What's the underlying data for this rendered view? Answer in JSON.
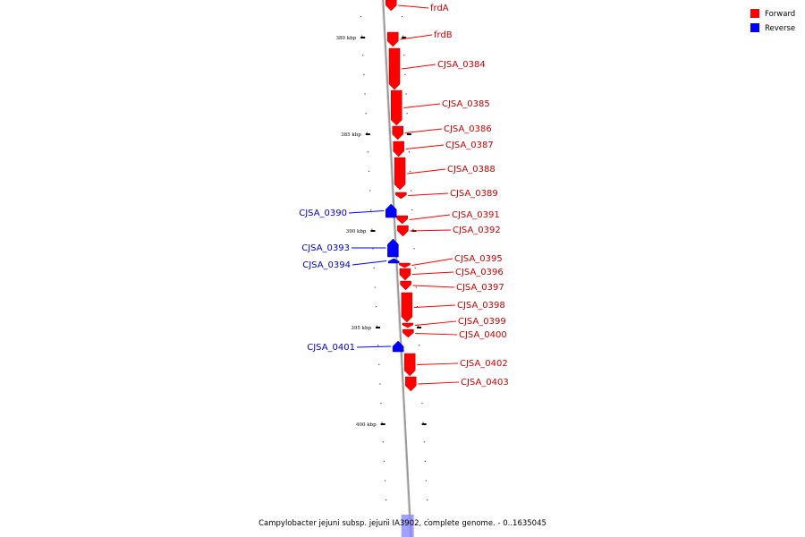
{
  "caption": "Campylobacter jejuni subsp. jejuni IA3902, complete genome. - 0..1635045",
  "legend": [
    {
      "label": "Forward",
      "color": "#ff0000"
    },
    {
      "label": "Reverse",
      "color": "#0000ff"
    }
  ],
  "colors": {
    "forward": "#ff0000",
    "reverse": "#0000ff",
    "backbone": "#999999",
    "forward_label": "#cc0000",
    "reverse_label": "#0000cc"
  },
  "tick_labels": [
    "380 kbp",
    "385 kbp",
    "390 kbp",
    "395 kbp",
    "400 kbp"
  ],
  "forward_genes": [
    "frdA",
    "frdB",
    "CJSA_0384",
    "CJSA_0385",
    "CJSA_0386",
    "CJSA_0387",
    "CJSA_0388",
    "CJSA_0389",
    "CJSA_0391",
    "CJSA_0392",
    "CJSA_0395",
    "CJSA_0396",
    "CJSA_0397",
    "CJSA_0398",
    "CJSA_0399",
    "CJSA_0400",
    "CJSA_0402",
    "CJSA_0403"
  ],
  "reverse_genes": [
    "CJSA_0390",
    "CJSA_0393",
    "CJSA_0394",
    "CJSA_0401"
  ]
}
